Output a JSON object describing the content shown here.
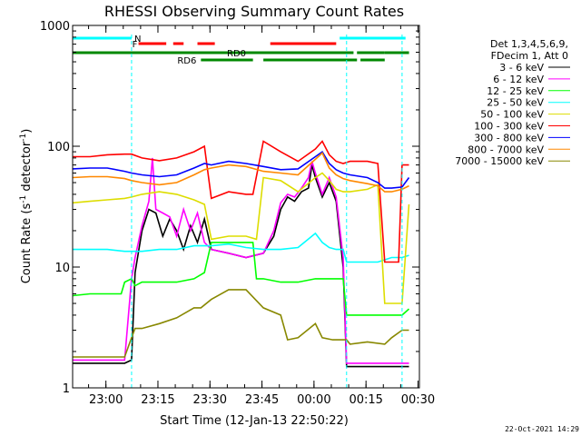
{
  "chart_data": {
    "type": "line",
    "title": "RHESSI Observing Summary Count Rates",
    "ylabel": "Count Rate (s",
    "ylabel_sup1": "-1",
    "ylabel_mid": " detector",
    "ylabel_sup2": "-1",
    "ylabel_end": ")",
    "xlabel": "Start Time (12-Jan-13 22:50:22)",
    "footer": "22-Oct-2021 14:29",
    "y_scale": "log",
    "ylim": [
      1,
      1000
    ],
    "y_ticks": [
      {
        "value": 1,
        "label": "1"
      },
      {
        "value": 10,
        "label": "10"
      },
      {
        "value": 100,
        "label": "100"
      },
      {
        "value": 1000,
        "label": "1000"
      }
    ],
    "xlim_min": [
      0,
      100
    ],
    "x_ticks": [
      {
        "value": 9.6,
        "label": "23:00"
      },
      {
        "value": 24.6,
        "label": "23:15"
      },
      {
        "value": 39.6,
        "label": "23:30"
      },
      {
        "value": 54.6,
        "label": "23:45"
      },
      {
        "value": 69.6,
        "label": "00:00"
      },
      {
        "value": 84.6,
        "label": "00:15"
      },
      {
        "value": 99.6,
        "label": "00:30"
      }
    ],
    "legend": {
      "header": [
        "Det 1,3,4,5,6,9,",
        "FDecim 1, Att 0"
      ],
      "placement": "right"
    },
    "flags": [
      {
        "label": "N",
        "color": "#00ffff",
        "segments": [
          [
            0,
            17
          ],
          [
            77,
            96
          ]
        ]
      },
      {
        "label": "F",
        "color": "#ff0000",
        "segments": [
          [
            19,
            27
          ],
          [
            29,
            32
          ],
          [
            36,
            41
          ],
          [
            57,
            76
          ]
        ]
      },
      {
        "label": "RD0",
        "color": "#008800",
        "segments": [
          [
            0,
            81
          ],
          [
            82,
            90
          ],
          [
            90,
            97
          ]
        ]
      },
      {
        "label": "RD6",
        "color": "#008800",
        "segments": [
          [
            37,
            52
          ],
          [
            55,
            82
          ],
          [
            83,
            90
          ]
        ]
      }
    ],
    "vlines": {
      "color": "#00ffff",
      "x": [
        17,
        79,
        95
      ]
    },
    "series": [
      {
        "name": "3 - 6 keV",
        "color": "#000000",
        "x": [
          0,
          5,
          10,
          15,
          17,
          18,
          20,
          22,
          24,
          26,
          28,
          30,
          32,
          34,
          36,
          38,
          40,
          45,
          50,
          55,
          58,
          60,
          62,
          64,
          66,
          68,
          69,
          70,
          72,
          74,
          76,
          78,
          79,
          80,
          82,
          84,
          86,
          88,
          90,
          92,
          95,
          97
        ],
        "y": [
          1.6,
          1.6,
          1.6,
          1.6,
          1.7,
          9,
          20,
          30,
          28,
          18,
          25,
          20,
          14,
          22,
          16,
          25,
          14,
          13,
          12,
          13,
          18,
          30,
          38,
          35,
          42,
          45,
          70,
          55,
          38,
          50,
          35,
          10,
          1.5,
          1.5,
          1.5,
          1.5,
          1.5,
          1.5,
          1.5,
          1.5,
          1.5,
          1.5
        ]
      },
      {
        "name": "6 - 12 keV",
        "color": "#ff00ff",
        "x": [
          0,
          5,
          10,
          15,
          17,
          18,
          20,
          22,
          23,
          24,
          26,
          28,
          30,
          32,
          34,
          36,
          38,
          40,
          45,
          50,
          55,
          58,
          60,
          62,
          64,
          66,
          68,
          69,
          70,
          72,
          74,
          76,
          78,
          79,
          82,
          85,
          88,
          92,
          95,
          97
        ],
        "y": [
          1.7,
          1.7,
          1.7,
          1.7,
          8,
          12,
          22,
          35,
          80,
          30,
          28,
          26,
          18,
          30,
          20,
          28,
          16,
          14,
          13,
          12,
          13,
          20,
          34,
          40,
          38,
          45,
          55,
          75,
          60,
          40,
          55,
          38,
          12,
          1.6,
          1.6,
          1.6,
          1.6,
          1.6,
          1.6,
          1.6
        ]
      },
      {
        "name": "12 - 25 keV",
        "color": "#00ff00",
        "x": [
          0,
          5,
          10,
          14,
          15,
          17,
          18,
          20,
          25,
          30,
          35,
          38,
          40,
          45,
          50,
          52,
          53,
          55,
          60,
          65,
          70,
          75,
          78,
          79,
          80,
          82,
          85,
          90,
          92,
          95,
          97
        ],
        "y": [
          5.8,
          6,
          6,
          6,
          7.5,
          8,
          7,
          7.5,
          7.5,
          7.5,
          8,
          9,
          16,
          16,
          16,
          16,
          8,
          8,
          7.5,
          7.5,
          8,
          8,
          8,
          4,
          4,
          4,
          4,
          4,
          4,
          4,
          4.5
        ]
      },
      {
        "name": "25 - 50 keV",
        "color": "#00ffff",
        "x": [
          0,
          5,
          10,
          15,
          17,
          20,
          25,
          30,
          35,
          40,
          45,
          50,
          55,
          60,
          65,
          70,
          72,
          74,
          76,
          78,
          79,
          80,
          84,
          88,
          92,
          95,
          97
        ],
        "y": [
          14,
          14,
          14,
          13.5,
          13.5,
          13.5,
          14,
          14,
          15,
          15,
          15.5,
          14.5,
          14,
          14,
          14.5,
          19,
          16,
          14.5,
          14,
          14,
          11,
          11,
          11,
          11,
          12,
          12,
          12.5
        ]
      },
      {
        "name": "50 - 100 keV",
        "color": "#dddd00",
        "x": [
          0,
          5,
          10,
          15,
          17,
          20,
          25,
          30,
          35,
          38,
          40,
          45,
          50,
          53,
          55,
          60,
          65,
          70,
          72,
          74,
          76,
          78,
          80,
          85,
          88,
          90,
          92,
          95,
          97
        ],
        "y": [
          34,
          35,
          36,
          37,
          38,
          40,
          42,
          40,
          36,
          33,
          17,
          18,
          18,
          17,
          55,
          52,
          42,
          55,
          60,
          52,
          44,
          42,
          42,
          44,
          48,
          5,
          5,
          5,
          33
        ]
      },
      {
        "name": "100 - 300 keV",
        "color": "#ff0000",
        "x": [
          0,
          5,
          10,
          15,
          17,
          20,
          25,
          30,
          35,
          38,
          40,
          45,
          50,
          52,
          55,
          60,
          65,
          70,
          72,
          74,
          76,
          78,
          80,
          85,
          88,
          90,
          92,
          94,
          95,
          97
        ],
        "y": [
          82,
          82,
          85,
          86,
          86,
          80,
          76,
          80,
          90,
          100,
          37,
          42,
          40,
          40,
          110,
          90,
          75,
          95,
          110,
          85,
          75,
          72,
          75,
          75,
          72,
          11,
          11,
          11,
          70,
          70
        ]
      },
      {
        "name": "300 - 800 keV",
        "color": "#0000ff",
        "x": [
          0,
          5,
          10,
          15,
          17,
          20,
          25,
          30,
          35,
          38,
          40,
          45,
          50,
          55,
          60,
          65,
          70,
          72,
          74,
          76,
          78,
          80,
          85,
          88,
          90,
          92,
          95,
          97
        ],
        "y": [
          65,
          66,
          66,
          62,
          60,
          58,
          56,
          58,
          66,
          72,
          70,
          75,
          72,
          68,
          64,
          65,
          82,
          90,
          72,
          64,
          60,
          58,
          55,
          50,
          45,
          45,
          46,
          55
        ]
      },
      {
        "name": "800 - 7000 keV",
        "color": "#ff8800",
        "x": [
          0,
          5,
          10,
          15,
          17,
          20,
          25,
          30,
          35,
          38,
          40,
          45,
          50,
          55,
          60,
          65,
          70,
          72,
          74,
          76,
          78,
          80,
          85,
          88,
          90,
          92,
          95,
          97
        ],
        "y": [
          55,
          56,
          56,
          54,
          52,
          50,
          48,
          50,
          58,
          64,
          66,
          70,
          68,
          62,
          60,
          58,
          78,
          88,
          66,
          58,
          54,
          52,
          49,
          47,
          42,
          42,
          44,
          47
        ]
      },
      {
        "name": "7000 - 15000 keV",
        "color": "#888800",
        "x": [
          0,
          5,
          10,
          15,
          17,
          18,
          20,
          25,
          30,
          35,
          37,
          40,
          45,
          50,
          55,
          60,
          62,
          65,
          70,
          72,
          75,
          79,
          80,
          85,
          90,
          92,
          95,
          97
        ],
        "y": [
          1.8,
          1.8,
          1.8,
          1.8,
          2.6,
          3.1,
          3.1,
          3.4,
          3.8,
          4.6,
          4.6,
          5.4,
          6.5,
          6.5,
          4.6,
          4,
          2.5,
          2.6,
          3.4,
          2.6,
          2.5,
          2.5,
          2.3,
          2.4,
          2.3,
          2.6,
          3,
          3
        ]
      }
    ]
  }
}
